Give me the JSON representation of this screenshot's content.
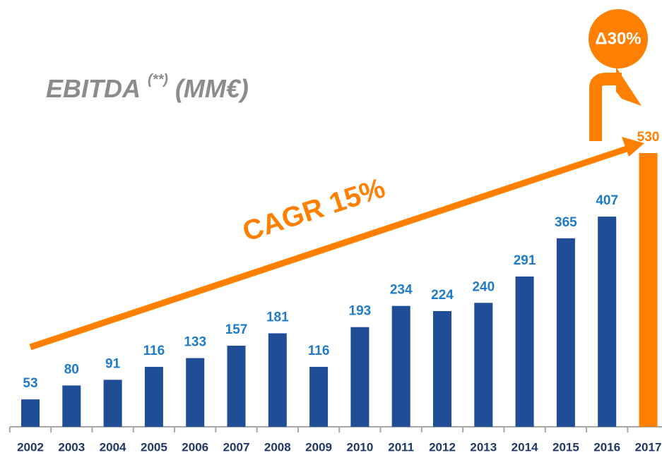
{
  "chart_data": {
    "type": "bar",
    "title": "EBITDA",
    "title_superscript": "(**)",
    "title_unit": "(MM€)",
    "categories": [
      "2002",
      "2003",
      "2004",
      "2005",
      "2006",
      "2007",
      "2008",
      "2009",
      "2010",
      "2011",
      "2012",
      "2013",
      "2014",
      "2015",
      "2016",
      "2017"
    ],
    "values": [
      53,
      80,
      91,
      116,
      133,
      157,
      181,
      116,
      193,
      234,
      224,
      240,
      291,
      365,
      407,
      530
    ],
    "colors": [
      "#1f4e96",
      "#1f4e96",
      "#1f4e96",
      "#1f4e96",
      "#1f4e96",
      "#1f4e96",
      "#1f4e96",
      "#1f4e96",
      "#1f4e96",
      "#1f4e96",
      "#1f4e96",
      "#1f4e96",
      "#1f4e96",
      "#1f4e96",
      "#1f4e96",
      "#ff8000"
    ],
    "label_colors": [
      "#1f7bc8",
      "#1f7bc8",
      "#1f7bc8",
      "#1f7bc8",
      "#1f7bc8",
      "#1f7bc8",
      "#1f7bc8",
      "#1f7bc8",
      "#1f7bc8",
      "#1f7bc8",
      "#1f7bc8",
      "#1f7bc8",
      "#1f7bc8",
      "#1f7bc8",
      "#1f7bc8",
      "#ff8000"
    ],
    "annotations": {
      "cagr": "CAGR 15%",
      "delta": "Δ30%"
    }
  }
}
